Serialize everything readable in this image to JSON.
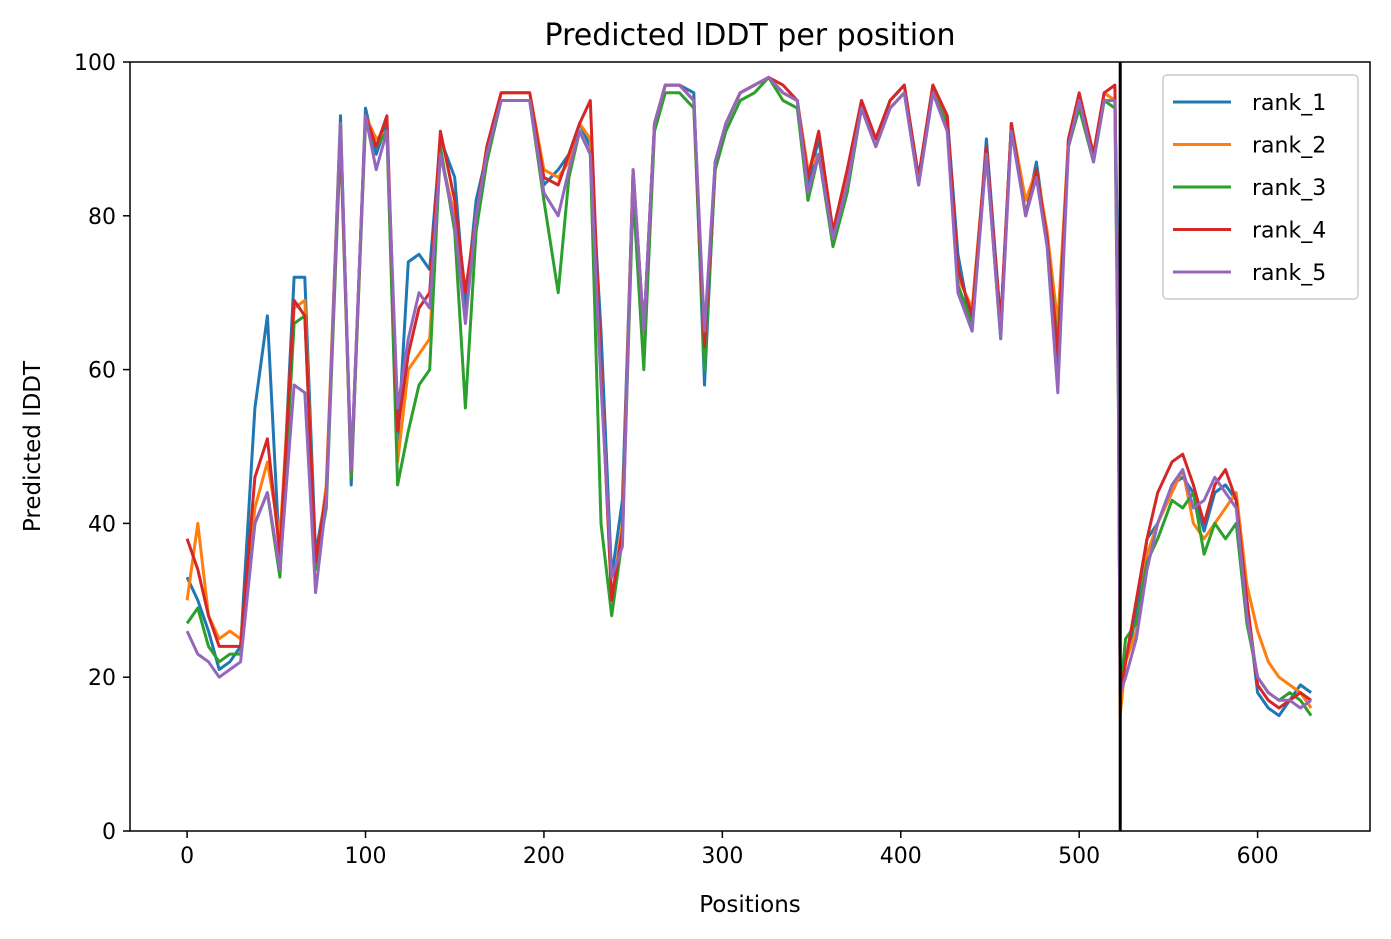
{
  "chart_data": {
    "type": "line",
    "title": "Predicted lDDT per position",
    "xlabel": "Positions",
    "ylabel": "Predicted lDDT",
    "xlim": [
      -32,
      663
    ],
    "ylim": [
      0,
      100
    ],
    "xticks": [
      0,
      100,
      200,
      300,
      400,
      500,
      600
    ],
    "yticks": [
      0,
      20,
      40,
      60,
      80,
      100
    ],
    "grid": false,
    "legend_position": "top-right",
    "vline": 523,
    "x": [
      0,
      6,
      12,
      18,
      24,
      30,
      38,
      45,
      52,
      60,
      66,
      72,
      78,
      86,
      92,
      100,
      106,
      112,
      118,
      124,
      130,
      136,
      142,
      150,
      156,
      162,
      168,
      176,
      184,
      192,
      200,
      208,
      214,
      220,
      226,
      232,
      238,
      244,
      250,
      256,
      262,
      268,
      276,
      284,
      290,
      296,
      302,
      310,
      318,
      326,
      334,
      342,
      348,
      354,
      362,
      370,
      378,
      386,
      394,
      402,
      410,
      418,
      426,
      432,
      440,
      448,
      456,
      462,
      470,
      476,
      482,
      488,
      494,
      500,
      508,
      514,
      520,
      522,
      523,
      526,
      532,
      538,
      544,
      552,
      558,
      564,
      570,
      576,
      582,
      588,
      594,
      600,
      606,
      612,
      618,
      624,
      630
    ],
    "series": [
      {
        "name": "rank_1",
        "color": "#1f77b4",
        "values": [
          33,
          30,
          26,
          21,
          22,
          24,
          55,
          67,
          35,
          72,
          72,
          36,
          44,
          93,
          45,
          94,
          88,
          92,
          50,
          74,
          75,
          73,
          90,
          85,
          68,
          82,
          88,
          95,
          95,
          95,
          84,
          86,
          88,
          92,
          89,
          65,
          33,
          43,
          85,
          65,
          92,
          97,
          97,
          96,
          58,
          87,
          92,
          96,
          97,
          98,
          96,
          95,
          84,
          90,
          78,
          85,
          95,
          90,
          95,
          97,
          85,
          97,
          93,
          75,
          65,
          90,
          66,
          92,
          80,
          87,
          77,
          60,
          90,
          95,
          88,
          96,
          95,
          70,
          20,
          22,
          28,
          38,
          40,
          45,
          46,
          44,
          39,
          44,
          45,
          43,
          30,
          18,
          16,
          15,
          17,
          19,
          18
        ]
      },
      {
        "name": "rank_2",
        "color": "#ff7f0e",
        "values": [
          30,
          40,
          28,
          25,
          26,
          25,
          42,
          48,
          38,
          68,
          69,
          34,
          45,
          92,
          46,
          93,
          90,
          91,
          48,
          60,
          62,
          64,
          88,
          80,
          70,
          80,
          87,
          96,
          96,
          96,
          86,
          85,
          87,
          92,
          90,
          60,
          30,
          40,
          86,
          62,
          92,
          97,
          97,
          95,
          62,
          86,
          92,
          96,
          97,
          98,
          96,
          95,
          86,
          88,
          77,
          85,
          94,
          89,
          95,
          97,
          84,
          97,
          92,
          72,
          68,
          89,
          65,
          92,
          82,
          86,
          78,
          66,
          90,
          95,
          88,
          96,
          95,
          60,
          15,
          22,
          26,
          36,
          40,
          44,
          47,
          40,
          38,
          40,
          42,
          44,
          32,
          26,
          22,
          20,
          19,
          18,
          16
        ]
      },
      {
        "name": "rank_3",
        "color": "#2ca02c",
        "values": [
          27,
          29,
          24,
          22,
          23,
          23,
          40,
          44,
          33,
          66,
          67,
          34,
          42,
          90,
          46,
          92,
          89,
          91,
          45,
          52,
          58,
          60,
          89,
          78,
          55,
          78,
          87,
          95,
          95,
          95,
          82,
          70,
          85,
          91,
          88,
          40,
          28,
          38,
          83,
          60,
          91,
          96,
          96,
          94,
          60,
          86,
          91,
          95,
          96,
          98,
          95,
          94,
          82,
          88,
          76,
          83,
          94,
          89,
          94,
          96,
          84,
          96,
          92,
          71,
          66,
          88,
          64,
          92,
          80,
          86,
          77,
          63,
          89,
          94,
          87,
          95,
          94,
          55,
          18,
          25,
          27,
          35,
          38,
          43,
          42,
          44,
          36,
          40,
          38,
          40,
          27,
          20,
          18,
          17,
          18,
          17,
          15
        ]
      },
      {
        "name": "rank_4",
        "color": "#d62728",
        "values": [
          38,
          34,
          28,
          24,
          24,
          24,
          46,
          51,
          36,
          69,
          67,
          35,
          44,
          91,
          47,
          93,
          89,
          93,
          52,
          62,
          68,
          70,
          91,
          82,
          70,
          80,
          89,
          96,
          96,
          96,
          85,
          84,
          88,
          92,
          95,
          60,
          30,
          39,
          86,
          65,
          92,
          97,
          97,
          95,
          63,
          87,
          92,
          96,
          97,
          98,
          97,
          95,
          85,
          91,
          78,
          86,
          95,
          90,
          95,
          97,
          85,
          97,
          93,
          73,
          67,
          89,
          66,
          92,
          80,
          86,
          77,
          62,
          90,
          96,
          88,
          96,
          97,
          60,
          18,
          22,
          30,
          38,
          44,
          48,
          49,
          45,
          40,
          45,
          47,
          43,
          30,
          19,
          17,
          16,
          17,
          18,
          17
        ]
      },
      {
        "name": "rank_5",
        "color": "#9467bd",
        "values": [
          26,
          23,
          22,
          20,
          21,
          22,
          40,
          44,
          34,
          58,
          57,
          31,
          43,
          92,
          47,
          93,
          86,
          91,
          55,
          64,
          70,
          68,
          88,
          79,
          66,
          80,
          88,
          95,
          95,
          95,
          83,
          80,
          86,
          91,
          88,
          58,
          33,
          37,
          86,
          65,
          92,
          97,
          97,
          95,
          65,
          87,
          92,
          96,
          97,
          98,
          96,
          95,
          83,
          88,
          77,
          84,
          94,
          89,
          94,
          96,
          84,
          96,
          91,
          70,
          65,
          88,
          64,
          91,
          80,
          85,
          76,
          57,
          89,
          95,
          87,
          95,
          95,
          58,
          18,
          20,
          25,
          34,
          40,
          45,
          47,
          42,
          43,
          46,
          44,
          42,
          28,
          20,
          18,
          17,
          17,
          16,
          17
        ]
      }
    ]
  }
}
